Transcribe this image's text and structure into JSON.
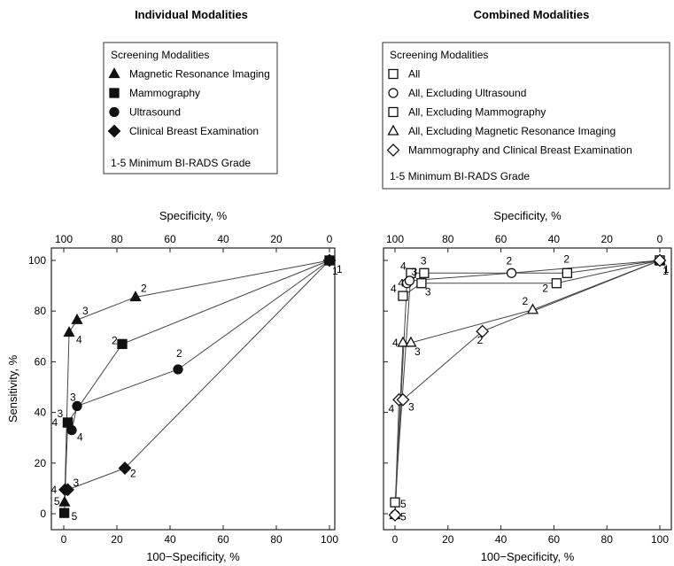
{
  "chart_data": [
    {
      "type": "line",
      "title": "Individual Modalities",
      "xlabel": "100−Specificity, %",
      "ylabel": "Sensitivity, %",
      "top_xlabel": "Specificity, %",
      "xlim": [
        0,
        100
      ],
      "ylim": [
        0,
        100
      ],
      "xticks": [
        "0",
        "20",
        "40",
        "60",
        "80",
        "100"
      ],
      "top_xticks": [
        "100",
        "80",
        "60",
        "40",
        "20",
        "0"
      ],
      "yticks": [
        "0",
        "20",
        "40",
        "60",
        "80",
        "100"
      ],
      "grid": false,
      "legend": {
        "title": "Screening Modalities",
        "footer": "1-5 Minimum BI-RADS Grade",
        "placement": "above-chart"
      },
      "series": [
        {
          "name": "Magnetic Resonance Imaging",
          "marker": "triangle-filled",
          "points": [
            {
              "x": 0.3,
              "y": 4.5,
              "label": "5"
            },
            {
              "x": 2.0,
              "y": 71.5,
              "label": "4"
            },
            {
              "x": 5.0,
              "y": 76.5,
              "label": "3"
            },
            {
              "x": 27.0,
              "y": 85.5,
              "label": "2"
            },
            {
              "x": 100,
              "y": 100,
              "label": "1"
            }
          ]
        },
        {
          "name": "Mammography",
          "marker": "square-filled",
          "points": [
            {
              "x": 0.2,
              "y": 0.3,
              "label": "5"
            },
            {
              "x": 1.5,
              "y": 36.0,
              "label": "4"
            },
            {
              "x": 1.5,
              "y": 36.0,
              "label": "3"
            },
            {
              "x": 22.0,
              "y": 67.0,
              "label": "2"
            },
            {
              "x": 100,
              "y": 100,
              "label": "1"
            }
          ]
        },
        {
          "name": "Ultrasound",
          "marker": "circle-filled",
          "points": [
            {
              "x": 3.0,
              "y": 33.0,
              "label": "4"
            },
            {
              "x": 5.0,
              "y": 42.5,
              "label": "3"
            },
            {
              "x": 43.0,
              "y": 57.0,
              "label": "2"
            },
            {
              "x": 100,
              "y": 100,
              "label": "1"
            }
          ]
        },
        {
          "name": "Clinical Breast Examination",
          "marker": "diamond-filled",
          "points": [
            {
              "x": 0.5,
              "y": 9.5,
              "label": "4"
            },
            {
              "x": 1.5,
              "y": 9.5,
              "label": "3"
            },
            {
              "x": 23.0,
              "y": 18.0,
              "label": "2"
            },
            {
              "x": 100,
              "y": 100,
              "label": "1"
            }
          ]
        }
      ]
    },
    {
      "type": "line",
      "title": "Combined Modalities",
      "xlabel": "100−Specificity, %",
      "ylabel": "",
      "top_xlabel": "Specificity, %",
      "xlim": [
        0,
        100
      ],
      "ylim": [
        0,
        100
      ],
      "xticks": [
        "0",
        "20",
        "40",
        "60",
        "80",
        "100"
      ],
      "top_xticks": [
        "100",
        "80",
        "60",
        "40",
        "20",
        "0"
      ],
      "yticks": [],
      "grid": false,
      "legend": {
        "title": "Screening Modalities",
        "footer": "1-5 Minimum BI-RADS Grade",
        "placement": "above-chart"
      },
      "series": [
        {
          "name": "All",
          "marker": "square-open",
          "points": [
            {
              "x": 0,
              "y": 4.5,
              "label": "5"
            },
            {
              "x": 6.0,
              "y": 95.0,
              "label": "4"
            },
            {
              "x": 11.0,
              "y": 95.0,
              "label": "3"
            },
            {
              "x": 65.0,
              "y": 95.0,
              "label": "2"
            },
            {
              "x": 100,
              "y": 100,
              "label": "1"
            }
          ]
        },
        {
          "name": "All, Excluding Ultrasound",
          "marker": "circle-open",
          "points": [
            {
              "x": 0,
              "y": -0.5,
              "label": "5"
            },
            {
              "x": 4.5,
              "y": 91.0,
              "label": "4"
            },
            {
              "x": 5.5,
              "y": 92.0,
              "label": "3"
            },
            {
              "x": 44.0,
              "y": 95.0,
              "label": "2"
            },
            {
              "x": 100,
              "y": 100,
              "label": "1"
            }
          ]
        },
        {
          "name": "All, Excluding Mammography",
          "marker": "square-open",
          "points": [
            {
              "x": 3.0,
              "y": 86.0,
              "label": "4"
            },
            {
              "x": 10.0,
              "y": 91.0,
              "label": "3"
            },
            {
              "x": 61.0,
              "y": 91.0,
              "label": "2"
            },
            {
              "x": 100,
              "y": 100,
              "label": "1"
            }
          ]
        },
        {
          "name": "All, Excluding Magnetic Resonance Imaging",
          "marker": "triangle-open",
          "points": [
            {
              "x": 0,
              "y": -0.5,
              "label": "5"
            },
            {
              "x": 3.0,
              "y": 67.5,
              "label": "4"
            },
            {
              "x": 6.0,
              "y": 67.5,
              "label": "3"
            },
            {
              "x": 52.0,
              "y": 80.5,
              "label": "2"
            },
            {
              "x": 100,
              "y": 100,
              "label": "1"
            }
          ]
        },
        {
          "name": "Mammography and Clinical Breast Examination",
          "marker": "diamond-open",
          "points": [
            {
              "x": 0,
              "y": -0.5,
              "label": "5"
            },
            {
              "x": 1.5,
              "y": 45.0,
              "label": "4"
            },
            {
              "x": 3.0,
              "y": 45.0,
              "label": "3"
            },
            {
              "x": 33.0,
              "y": 72.0,
              "label": "2"
            },
            {
              "x": 100,
              "y": 100,
              "label": "1"
            }
          ]
        }
      ]
    }
  ]
}
